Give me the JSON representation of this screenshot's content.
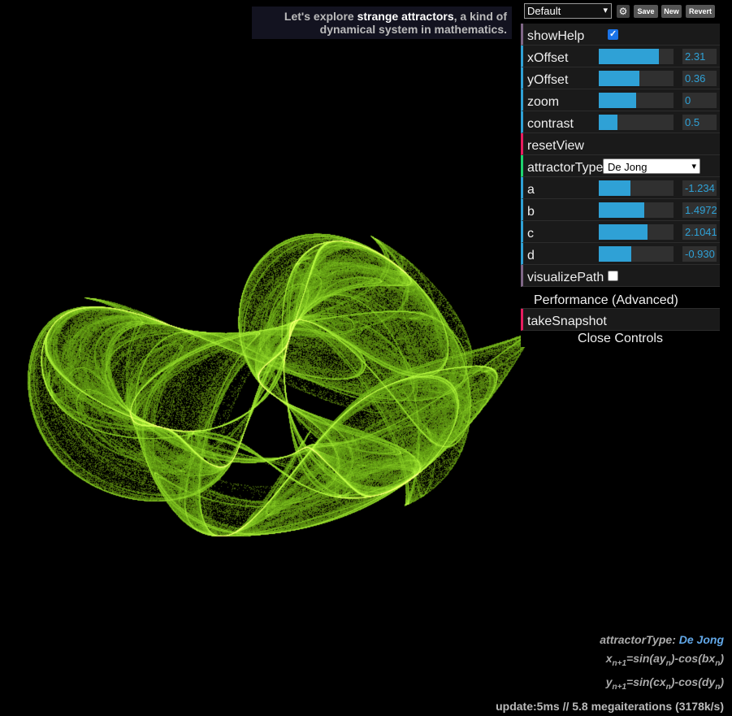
{
  "help": {
    "prefix": "Let's explore ",
    "strong": "strange attractors",
    "suffix": ", a kind of dynamical system in mathematics."
  },
  "preset": {
    "selected": "Default",
    "save": "Save",
    "new": "New",
    "revert": "Revert",
    "gear_icon": "gear-icon"
  },
  "controls": {
    "showHelp": {
      "label": "showHelp",
      "checked": true
    },
    "xOffset": {
      "label": "xOffset",
      "value": "2.31",
      "fraction": 0.8
    },
    "yOffset": {
      "label": "yOffset",
      "value": "0.36",
      "fraction": 0.54
    },
    "zoom": {
      "label": "zoom",
      "value": "0",
      "fraction": 0.5
    },
    "contrast": {
      "label": "contrast",
      "value": "0.5",
      "fraction": 0.25
    },
    "resetView": {
      "label": "resetView"
    },
    "attractorType": {
      "label": "attractorType",
      "value": "De Jong"
    },
    "a": {
      "label": "a",
      "value": "-1.234",
      "fraction": 0.42
    },
    "b": {
      "label": "b",
      "value": "1.4972",
      "fraction": 0.61
    },
    "c": {
      "label": "c",
      "value": "2.1041",
      "fraction": 0.65
    },
    "d": {
      "label": "d",
      "value": "-0.930",
      "fraction": 0.43
    },
    "visualizePath": {
      "label": "visualizePath",
      "checked": false
    },
    "performance": {
      "label": "Performance (Advanced)"
    },
    "takeSnapshot": {
      "label": "takeSnapshot"
    }
  },
  "close_controls": "Close Controls",
  "info": {
    "type_label": "attractorType:",
    "type_value": "De Jong",
    "formula_x": "x",
    "formula_x_sub": "n+1",
    "formula_x_rhs_1": "=sin(ay",
    "formula_x_rhs_2": ")-cos(bx",
    "formula_x_rhs_3": ")",
    "formula_y": "y",
    "formula_y_sub": "n+1",
    "formula_y_rhs_1": "=sin(cx",
    "formula_y_rhs_2": ")-cos(dy",
    "formula_y_rhs_3": ")",
    "sub_n": "n"
  },
  "perf": "update:5ms // 5.8 megaiterations (3178k/s)",
  "colors": {
    "attractor": "#8cff3a",
    "slider": "#2fa1d6",
    "background": "#000000"
  }
}
